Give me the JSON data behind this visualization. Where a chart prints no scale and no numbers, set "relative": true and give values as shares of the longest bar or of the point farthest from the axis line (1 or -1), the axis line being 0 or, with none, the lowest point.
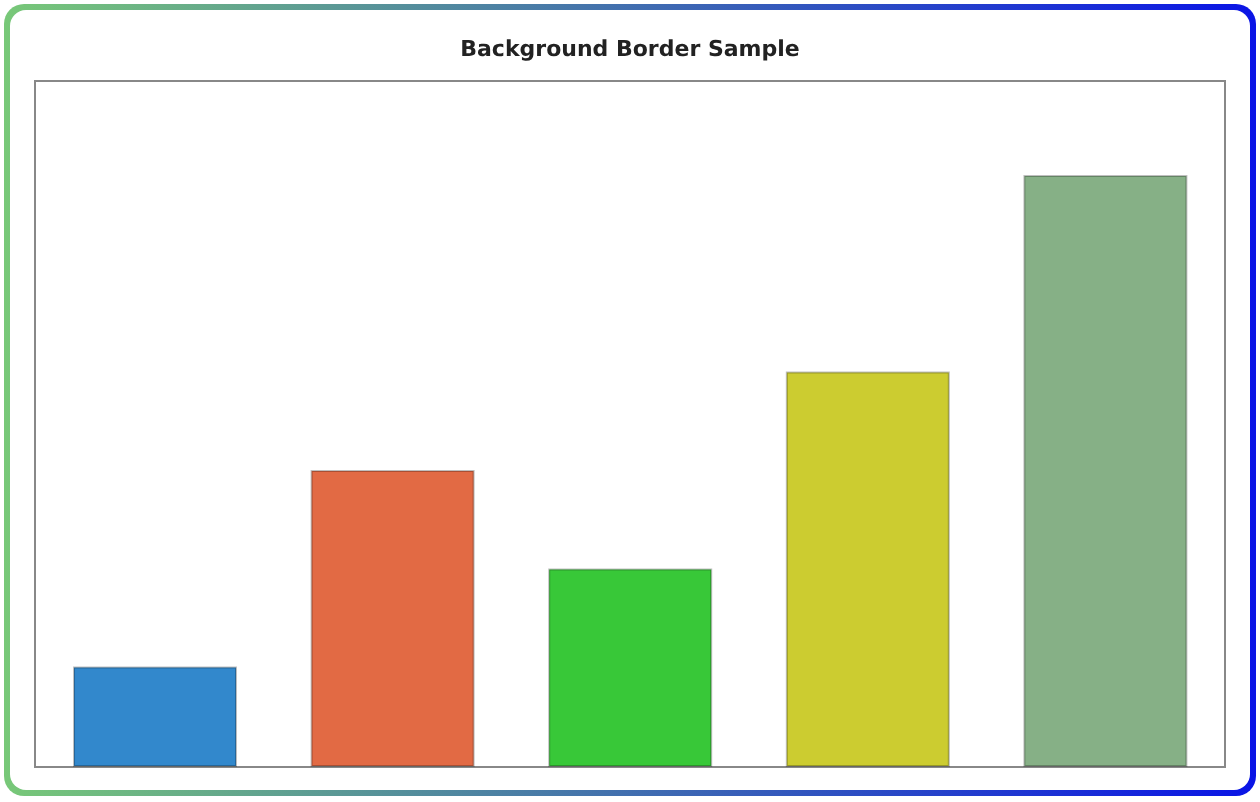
{
  "chart_data": {
    "type": "bar",
    "title": "Background Border Sample",
    "categories": [
      null,
      null,
      null,
      null,
      null
    ],
    "values": [
      0.167,
      0.5,
      0.333,
      0.667,
      1
    ],
    "colors": [
      "#3288cc",
      "#e26a44",
      "#38c838",
      "#cccc30",
      "#86b086"
    ],
    "relative": true,
    "grid": false
  }
}
